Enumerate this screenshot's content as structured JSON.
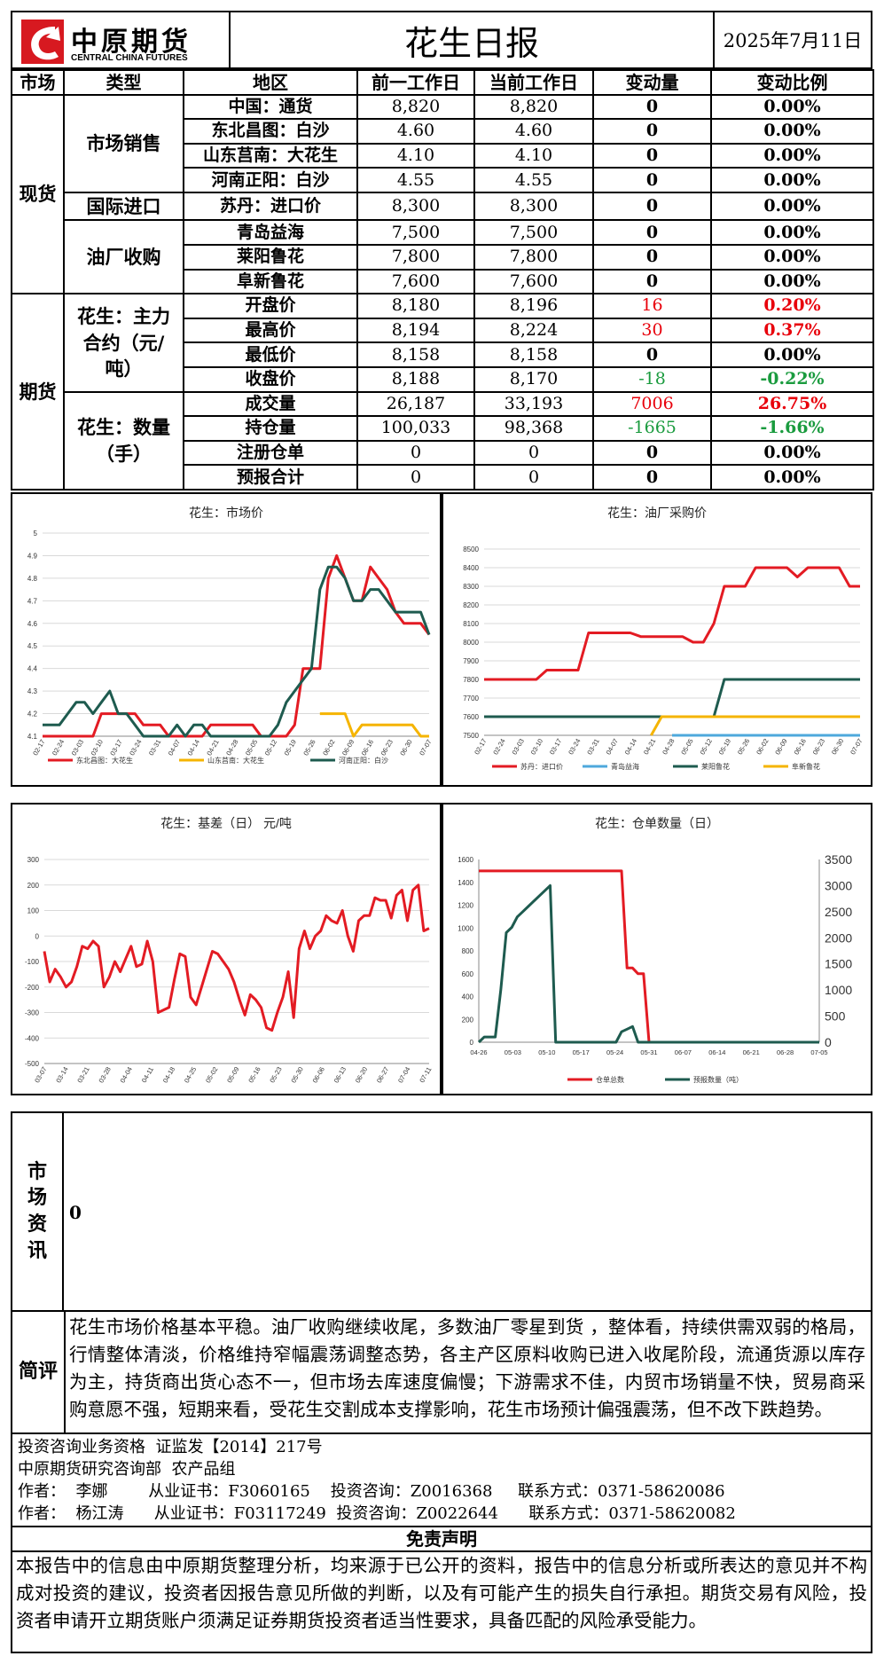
{
  "header": {
    "logo_cn": "中原期货",
    "logo_en": "CENTRAL CHINA FUTURES",
    "title": "花生日报",
    "date": "2025年7月11日"
  },
  "table": {
    "headers": [
      "市场",
      "类型",
      "地区",
      "前一工作日",
      "当前工作日",
      "变动量",
      "变动比例"
    ],
    "spot_label": "现货",
    "futures_label": "期货",
    "group_market": "市场销售",
    "group_import": "国际进口",
    "group_oil": "油厂收购",
    "group_main": "花生：主力合约（元/吨）",
    "group_qty": "花生：数量（手）",
    "rows": [
      {
        "region": "中国：通货",
        "prev": "8,820",
        "curr": "8,820",
        "chg": "0",
        "pct": "0.00%",
        "color": "black"
      },
      {
        "region": "东北昌图：白沙",
        "prev": "4.60",
        "curr": "4.60",
        "chg": "0",
        "pct": "0.00%",
        "color": "black"
      },
      {
        "region": "山东莒南：大花生",
        "prev": "4.10",
        "curr": "4.10",
        "chg": "0",
        "pct": "0.00%",
        "color": "black"
      },
      {
        "region": "河南正阳：白沙",
        "prev": "4.55",
        "curr": "4.55",
        "chg": "0",
        "pct": "0.00%",
        "color": "black"
      },
      {
        "region": "苏丹：进口价",
        "prev": "8,300",
        "curr": "8,300",
        "chg": "0",
        "pct": "0.00%",
        "color": "black"
      },
      {
        "region": "青岛益海",
        "prev": "7,500",
        "curr": "7,500",
        "chg": "0",
        "pct": "0.00%",
        "color": "black"
      },
      {
        "region": "莱阳鲁花",
        "prev": "7,800",
        "curr": "7,800",
        "chg": "0",
        "pct": "0.00%",
        "color": "black"
      },
      {
        "region": "阜新鲁花",
        "prev": "7,600",
        "curr": "7,600",
        "chg": "0",
        "pct": "0.00%",
        "color": "black"
      },
      {
        "region": "开盘价",
        "prev": "8,180",
        "curr": "8,196",
        "chg": "16",
        "pct": "0.20%",
        "color": "red"
      },
      {
        "region": "最高价",
        "prev": "8,194",
        "curr": "8,224",
        "chg": "30",
        "pct": "0.37%",
        "color": "red"
      },
      {
        "region": "最低价",
        "prev": "8,158",
        "curr": "8,158",
        "chg": "0",
        "pct": "0.00%",
        "color": "black"
      },
      {
        "region": "收盘价",
        "prev": "8,188",
        "curr": "8,170",
        "chg": "-18",
        "pct": "-0.22%",
        "color": "green"
      },
      {
        "region": "成交量",
        "prev": "26,187",
        "curr": "33,193",
        "chg": "7006",
        "pct": "26.75%",
        "color": "red"
      },
      {
        "region": "持仓量",
        "prev": "100,033",
        "curr": "98,368",
        "chg": "-1665",
        "pct": "-1.66%",
        "color": "green"
      },
      {
        "region": "注册仓单",
        "prev": "0",
        "curr": "0",
        "chg": "0",
        "pct": "0.00%",
        "color": "black"
      },
      {
        "region": "预报合计",
        "prev": "0",
        "curr": "0",
        "chg": "0",
        "pct": "0.00%",
        "color": "black"
      }
    ]
  },
  "chart_data": [
    {
      "type": "line",
      "title": "花生：市场价",
      "ylim": [
        4.1,
        5.0
      ],
      "yticks": [
        "5",
        "4.9",
        "4.8",
        "4.7",
        "4.6",
        "4.5",
        "4.4",
        "4.3",
        "4.2",
        "4.1"
      ],
      "xticks": [
        "02-17",
        "02-24",
        "03-03",
        "03-10",
        "03-17",
        "03-24",
        "03-31",
        "04-07",
        "04-14",
        "04-21",
        "04-28",
        "05-05",
        "05-12",
        "05-19",
        "05-26",
        "06-02",
        "06-09",
        "06-16",
        "06-23",
        "06-30",
        "07-07"
      ],
      "legend_position": "bottom",
      "series": [
        {
          "name": "东北昌图：大花生",
          "color": "#e31b23",
          "values": [
            4.1,
            4.1,
            4.1,
            4.1,
            4.1,
            4.1,
            4.1,
            4.2,
            4.2,
            4.2,
            4.2,
            4.2,
            4.15,
            4.15,
            4.15,
            4.1,
            4.1,
            4.1,
            4.1,
            4.1,
            4.15,
            4.15,
            4.15,
            4.15,
            4.15,
            4.15,
            4.1,
            4.1,
            4.1,
            4.1,
            4.15,
            4.4,
            4.4,
            4.4,
            4.8,
            4.9,
            4.8,
            4.7,
            4.7,
            4.85,
            4.8,
            4.75,
            4.65,
            4.6,
            4.6,
            4.6,
            4.55
          ]
        },
        {
          "name": "山东莒南：大花生",
          "color": "#f5b400",
          "values": [
            null,
            null,
            null,
            null,
            null,
            null,
            null,
            null,
            null,
            null,
            null,
            null,
            null,
            null,
            null,
            null,
            null,
            null,
            null,
            null,
            null,
            null,
            null,
            null,
            null,
            null,
            null,
            null,
            null,
            null,
            null,
            null,
            null,
            4.2,
            4.2,
            4.2,
            4.2,
            4.1,
            4.15,
            4.15,
            4.15,
            4.15,
            4.15,
            4.15,
            4.15,
            4.1,
            4.1
          ]
        },
        {
          "name": "河南正阳：白沙",
          "color": "#1e5b4f",
          "values": [
            4.15,
            4.15,
            4.15,
            4.2,
            4.25,
            4.25,
            4.2,
            4.25,
            4.3,
            4.2,
            4.2,
            4.15,
            4.1,
            4.1,
            4.1,
            4.1,
            4.15,
            4.1,
            4.15,
            4.15,
            4.1,
            4.1,
            4.1,
            4.1,
            4.1,
            4.1,
            4.1,
            4.1,
            4.15,
            4.25,
            4.3,
            4.35,
            4.4,
            4.75,
            4.85,
            4.85,
            4.8,
            4.7,
            4.7,
            4.75,
            4.75,
            4.7,
            4.65,
            4.65,
            4.65,
            4.65,
            4.55
          ]
        }
      ]
    },
    {
      "type": "line",
      "title": "花生：油厂采购价",
      "ylim": [
        7500,
        8500
      ],
      "yticks": [
        "8500",
        "8400",
        "8300",
        "8200",
        "8100",
        "8000",
        "7900",
        "7800",
        "7700",
        "7600",
        "7500"
      ],
      "xticks": [
        "02-17",
        "02-24",
        "03-03",
        "03-10",
        "03-17",
        "03-24",
        "03-31",
        "04-07",
        "04-14",
        "04-21",
        "04-28",
        "05-05",
        "05-12",
        "05-19",
        "05-26",
        "06-02",
        "06-09",
        "06-16",
        "06-23",
        "06-30",
        "07-07"
      ],
      "legend_position": "bottom",
      "series": [
        {
          "name": "苏丹：进口价",
          "color": "#e31b23",
          "values": [
            7800,
            7800,
            7800,
            7800,
            7800,
            7800,
            7850,
            7850,
            7850,
            7850,
            8050,
            8050,
            8050,
            8050,
            8050,
            8030,
            8030,
            8030,
            8030,
            8030,
            8000,
            8000,
            8100,
            8300,
            8300,
            8300,
            8400,
            8400,
            8400,
            8400,
            8350,
            8400,
            8400,
            8400,
            8400,
            8300,
            8300
          ]
        },
        {
          "name": "青岛益海",
          "color": "#4ea8dc",
          "values": [
            null,
            null,
            null,
            null,
            null,
            null,
            null,
            null,
            null,
            null,
            null,
            null,
            null,
            null,
            null,
            null,
            null,
            null,
            7500,
            7500,
            7500,
            7500,
            7500,
            7500,
            7500,
            7500,
            7500,
            7500,
            7500,
            7500,
            7500,
            7500,
            7500,
            7500,
            7500,
            7500,
            7500
          ]
        },
        {
          "name": "莱阳鲁花",
          "color": "#1e5b4f",
          "values": [
            7600,
            7600,
            7600,
            7600,
            7600,
            7600,
            7600,
            7600,
            7600,
            7600,
            7600,
            7600,
            7600,
            7600,
            7600,
            7600,
            7600,
            7600,
            7600,
            7600,
            7600,
            7600,
            7600,
            7800,
            7800,
            7800,
            7800,
            7800,
            7800,
            7800,
            7800,
            7800,
            7800,
            7800,
            7800,
            7800,
            7800
          ]
        },
        {
          "name": "阜新鲁花",
          "color": "#f5b400",
          "values": [
            null,
            null,
            null,
            null,
            null,
            null,
            null,
            null,
            null,
            null,
            null,
            null,
            null,
            null,
            null,
            null,
            7500,
            7600,
            7600,
            7600,
            7600,
            7600,
            7600,
            7600,
            7600,
            7600,
            7600,
            7600,
            7600,
            7600,
            7600,
            7600,
            7600,
            7600,
            7600,
            7600,
            7600
          ]
        }
      ]
    },
    {
      "type": "line",
      "title": "花生：基差（日） 元/吨",
      "ylim": [
        -500,
        300
      ],
      "yticks": [
        "300",
        "200",
        "100",
        "0",
        "-100",
        "-200",
        "-300",
        "-400",
        "-500"
      ],
      "xticks": [
        "03-07",
        "03-14",
        "03-21",
        "03-28",
        "04-04",
        "04-11",
        "04-18",
        "04-25",
        "05-02",
        "05-09",
        "05-16",
        "05-23",
        "05-30",
        "06-06",
        "06-13",
        "06-20",
        "06-27",
        "07-04",
        "07-11"
      ],
      "series": [
        {
          "name": "",
          "color": "#e31b23",
          "values": [
            -60,
            -180,
            -130,
            -160,
            -200,
            -180,
            -120,
            -40,
            -50,
            -20,
            -40,
            -200,
            -160,
            -100,
            -140,
            -90,
            -40,
            -120,
            -110,
            -20,
            -100,
            -300,
            -290,
            -280,
            -170,
            -70,
            -80,
            -240,
            -270,
            -200,
            -130,
            -60,
            -70,
            -100,
            -130,
            -180,
            -250,
            -310,
            -230,
            -250,
            -280,
            -360,
            -370,
            -300,
            -240,
            -140,
            -320,
            -50,
            20,
            -50,
            0,
            20,
            80,
            60,
            50,
            100,
            0,
            -60,
            60,
            80,
            80,
            150,
            140,
            140,
            70,
            160,
            180,
            60,
            180,
            200,
            20,
            30
          ]
        }
      ]
    },
    {
      "type": "line",
      "title": "花生：仓单数量（日）",
      "ylim_left": [
        0,
        1600
      ],
      "ylim_right": [
        0,
        3500
      ],
      "yticks_left": [
        "1600",
        "1400",
        "1200",
        "1000",
        "800",
        "600",
        "400",
        "200",
        "0"
      ],
      "yticks_right": [
        "3500",
        "3000",
        "2500",
        "2000",
        "1500",
        "1000",
        "500",
        "0"
      ],
      "xticks": [
        "04-26",
        "05-03",
        "05-10",
        "05-17",
        "05-24",
        "05-31",
        "06-07",
        "06-14",
        "06-21",
        "06-28",
        "07-05"
      ],
      "legend_position": "bottom",
      "series": [
        {
          "name": "仓单总数",
          "color": "#e31b23",
          "axis": "left",
          "values": [
            1500,
            1500,
            1500,
            1500,
            1500,
            1500,
            1500,
            1500,
            1500,
            1500,
            1500,
            1500,
            1500,
            1500,
            1500,
            1500,
            1500,
            1500,
            1500,
            1500,
            1500,
            1500,
            1500,
            1500,
            1500,
            1500,
            1500,
            650,
            650,
            600,
            600,
            0,
            0,
            0,
            0,
            0,
            0,
            0,
            0,
            0,
            0,
            0,
            0,
            0,
            0,
            0,
            0,
            0,
            0,
            0,
            0,
            0,
            0,
            0,
            0,
            0,
            0,
            0,
            0,
            0,
            0,
            0,
            0
          ]
        },
        {
          "name": "预报数量（吨）",
          "color": "#1e5b4f",
          "axis": "right",
          "values": [
            0,
            100,
            100,
            100,
            1000,
            2100,
            2200,
            2400,
            2500,
            2600,
            2700,
            2800,
            2900,
            3000,
            0,
            0,
            0,
            0,
            0,
            0,
            0,
            0,
            0,
            0,
            0,
            0,
            200,
            250,
            300,
            0,
            0,
            0,
            0,
            0,
            0,
            0,
            0,
            0,
            0,
            0,
            0,
            0,
            0,
            0,
            0,
            0,
            0,
            0,
            0,
            0,
            0,
            0,
            0,
            0,
            0,
            0,
            0,
            0,
            0,
            0,
            0,
            0,
            0
          ]
        }
      ]
    }
  ],
  "news": {
    "label": "市场资讯",
    "content": "0"
  },
  "comment": {
    "label": "简评",
    "content": "花生市场价格基本平稳。油厂收购继续收尾，多数油厂零星到货 ，整体看，持续供需双弱的格局，行情整体清淡，价格维持窄幅震荡调整态势，各主产区原料收购已进入收尾阶段，流通货源以库存为主，持货商出货心态不一，但市场去库速度偏慢；下游需求不佳，内贸市场销量不快，贸易商采购意愿不强，短期来看，受花生交割成本支撑影响，花生市场预计偏强震荡，但不改下跌趋势。"
  },
  "info": {
    "line1": "投资咨询业务资格  证监发【2014】217号",
    "line2": "中原期货研究咨询部  农产品组",
    "line3": "作者：  李娜        从业证书：F3060165    投资咨询：Z0016368     联系方式：0371-58620086",
    "line4": "作者：  杨江涛      从业证书：F03117249  投资咨询：Z0022644      联系方式：0371-58620082"
  },
  "disclaimer": {
    "title": "免责声明",
    "content": "本报告中的信息由中原期货整理分析，均来源于已公开的资料，报告中的信息分析或所表达的意见并不构成对投资的建议，投资者因报告意见所做的判断，以及有可能产生的损失自行承担。期货交易有风险，投资者申请开立期货账户须满足证券期货投资者适当性要求，具备匹配的风险承受能力。"
  }
}
